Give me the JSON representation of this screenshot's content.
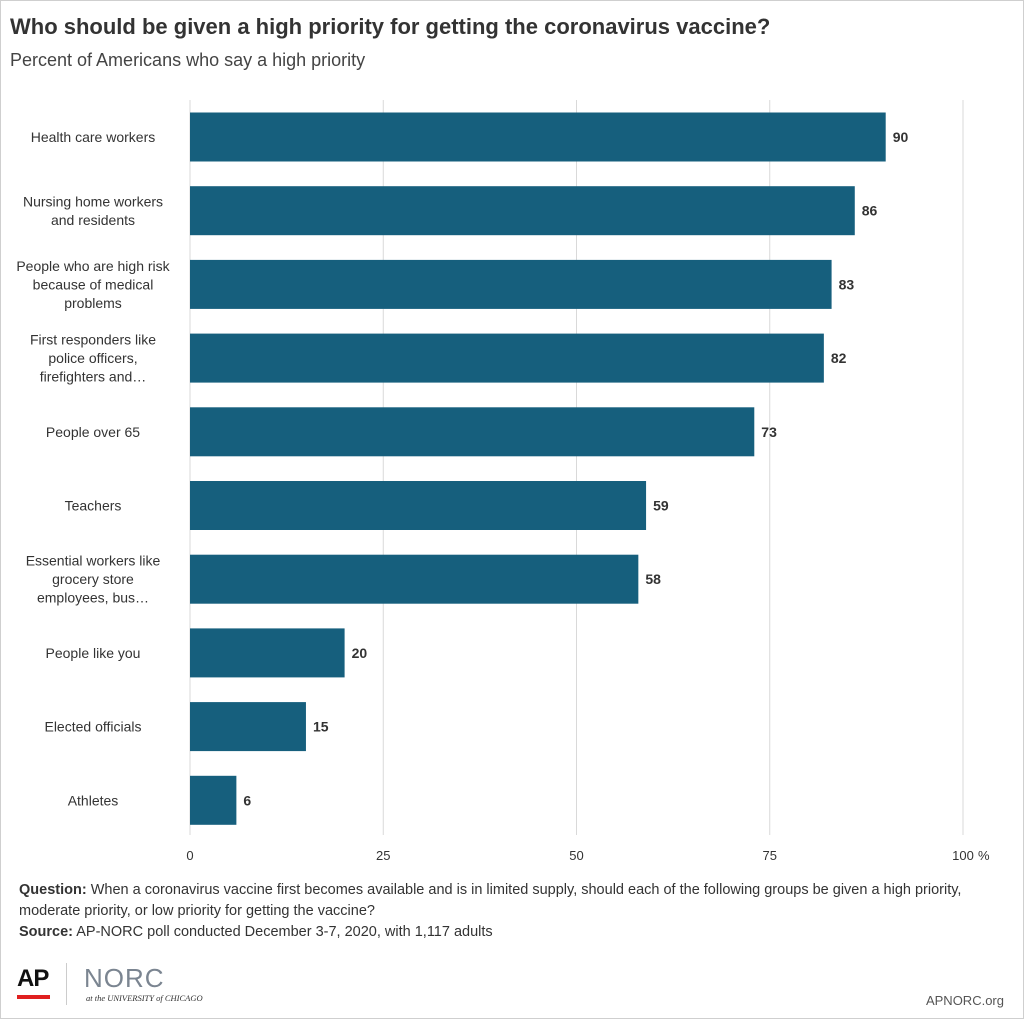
{
  "header": {
    "title": "Who should be given a high priority for getting the coronavirus vaccine?",
    "subtitle": "Percent of Americans who say a high priority"
  },
  "chart_data": {
    "type": "bar",
    "orientation": "horizontal",
    "title": "Who should be given a high priority for getting the coronavirus vaccine?",
    "subtitle": "Percent of Americans who say a high priority",
    "categories": [
      "Health care workers",
      "Nursing home workers and residents",
      "People who are high risk because of medical problems",
      "First responders like police officers, firefighters and…",
      "People over 65",
      "Teachers",
      "Essential workers like grocery store employees, bus…",
      "People like you",
      "Elected officials",
      "Athletes"
    ],
    "category_lines": [
      [
        "Health care workers"
      ],
      [
        "Nursing home workers",
        "and residents"
      ],
      [
        "People who are high risk",
        "because of medical",
        "problems"
      ],
      [
        "First responders like",
        "police officers,",
        "firefighters and…"
      ],
      [
        "People over 65"
      ],
      [
        "Teachers"
      ],
      [
        "Essential workers like",
        "grocery store",
        "employees, bus…"
      ],
      [
        "People like you"
      ],
      [
        "Elected officials"
      ],
      [
        "Athletes"
      ]
    ],
    "values": [
      90,
      86,
      83,
      82,
      73,
      59,
      58,
      20,
      15,
      6
    ],
    "xlim": [
      0,
      100
    ],
    "xticks": [
      0,
      25,
      50,
      75,
      100
    ],
    "xtick_labels": [
      "0",
      "25",
      "50",
      "75",
      "100"
    ],
    "x_unit": "%",
    "grid": "vertical",
    "legend": "none",
    "bar_color": "#165f7d"
  },
  "footer": {
    "question_label": "Question:",
    "question_text": "When a coronavirus vaccine first becomes available and is in limited supply, should each of the following groups be given a high priority, moderate priority, or low priority for getting the vaccine?",
    "source_label": "Source:",
    "source_text": "AP-NORC poll conducted December 3-7, 2020, with 1,117 adults",
    "logo_ap": "AP",
    "logo_norc": "NORC",
    "logo_norc_sub": "at the UNIVERSITY of CHICAGO",
    "url": "APNORC.org"
  }
}
